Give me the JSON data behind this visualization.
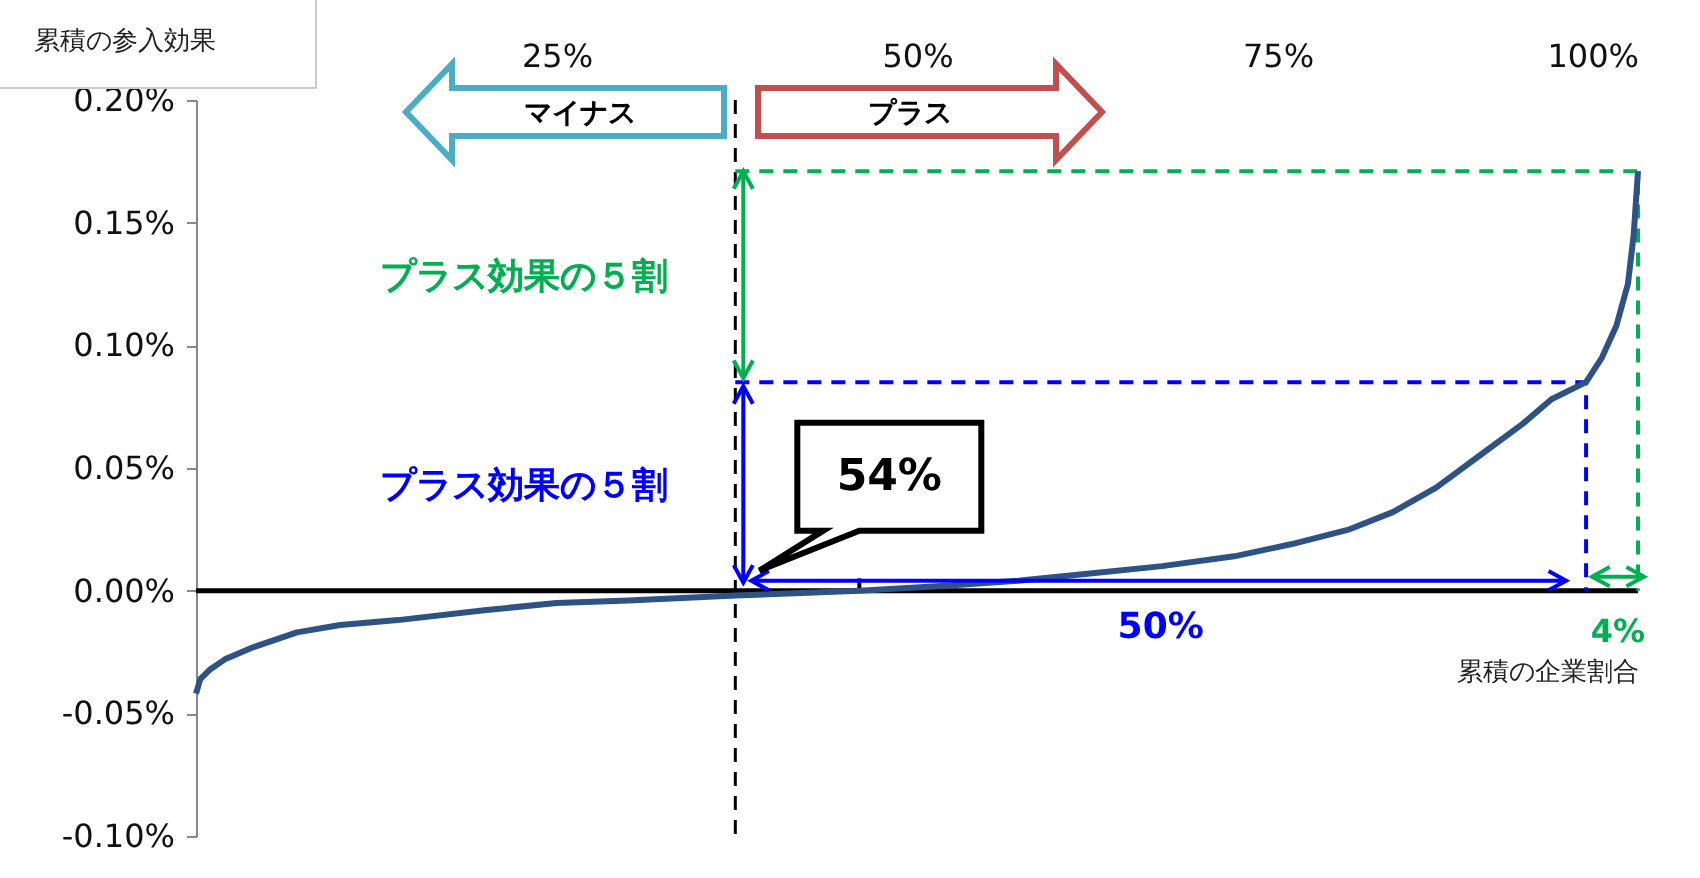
{
  "chart_data": {
    "type": "line",
    "title": "累積の参入効果",
    "xlabel": "累積の企業割合",
    "xlim": [
      0,
      100
    ],
    "xticks": [
      {
        "value": 25,
        "label": "25%"
      },
      {
        "value": 50,
        "label": "50%"
      },
      {
        "value": 75,
        "label": "75%"
      },
      {
        "value": 100,
        "label": "100%"
      }
    ],
    "ylim": [
      -0.1,
      0.2
    ],
    "yticks": [
      {
        "value": -0.1,
        "label": "-0.10%"
      },
      {
        "value": -0.05,
        "label": "-0.05%"
      },
      {
        "value": 0,
        "label": "0.00%"
      },
      {
        "value": 0.05,
        "label": "0.05%"
      },
      {
        "value": 0.1,
        "label": "0.10%"
      },
      {
        "value": 0.15,
        "label": "0.15%"
      },
      {
        "value": 0.2,
        "label": "0.20%"
      }
    ],
    "series": [
      {
        "color": "#2e5283",
        "x": [
          0,
          0.3,
          1,
          2,
          4,
          7,
          10,
          14,
          20,
          25,
          30,
          37.4,
          42,
          46,
          52,
          57,
          62,
          67,
          72,
          76,
          80,
          83,
          86,
          89,
          92,
          94,
          96.4,
          97.5,
          98.5,
          99.3,
          99.7,
          100
        ],
        "values": [
          -0.042,
          -0.036,
          -0.032,
          -0.028,
          -0.023,
          -0.017,
          -0.014,
          -0.012,
          -0.008,
          -0.005,
          -0.004,
          -0.002,
          -0.001,
          0,
          0.002,
          0.004,
          0.007,
          0.01,
          0.014,
          0.019,
          0.025,
          0.032,
          0.042,
          0.055,
          0.068,
          0.078,
          0.085,
          0.095,
          0.108,
          0.125,
          0.145,
          0.171
        ]
      },
      {
        "color": "#0000ff",
        "line_style": "dashed",
        "x": [
          37.4,
          96.4,
          96.4
        ],
        "values": [
          0.085,
          0.085,
          0
        ]
      },
      {
        "color": "#00b050",
        "line_style": "dashed",
        "x": [
          37.4,
          100,
          100
        ],
        "values": [
          0.171,
          0.171,
          0
        ]
      },
      {
        "color": "#000000",
        "line_style": "dashed",
        "x": [
          46,
          46
        ],
        "values": [
          0,
          0.005
        ]
      }
    ],
    "ref_lines": [
      {
        "axis": "y",
        "value": 0,
        "color": "#000000"
      },
      {
        "axis": "x",
        "value": 37.4,
        "color": "#000000",
        "line_style": "dashed"
      }
    ],
    "annotations": [
      "マイナス",
      "プラス",
      "プラス効果の５割",
      "プラス効果の５割",
      "54%",
      "50%",
      "4%"
    ]
  }
}
